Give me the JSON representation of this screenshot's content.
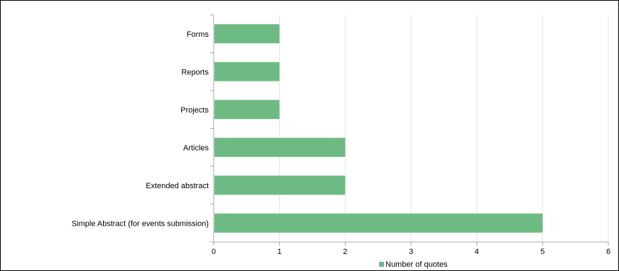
{
  "colors": {
    "bar": "#6dbb82",
    "axis": "#a6a6a6",
    "gridline": "#e4e4e4",
    "background": "#ffffff"
  },
  "chart_data": {
    "type": "bar",
    "orientation": "horizontal",
    "categories": [
      "Forms",
      "Reports",
      "Projects",
      "Articles",
      "Extended abstract",
      "Simple Abstract (for events submission)"
    ],
    "series": [
      {
        "name": "Number of quotes",
        "values": [
          1,
          1,
          1,
          2,
          2,
          5
        ]
      }
    ],
    "xlim": [
      0,
      6
    ],
    "xticks": [
      "0",
      "1",
      "2",
      "3",
      "4",
      "5",
      "6"
    ],
    "title": "",
    "xlabel": "",
    "ylabel": "",
    "grid": true,
    "legend_position": "bottom"
  }
}
